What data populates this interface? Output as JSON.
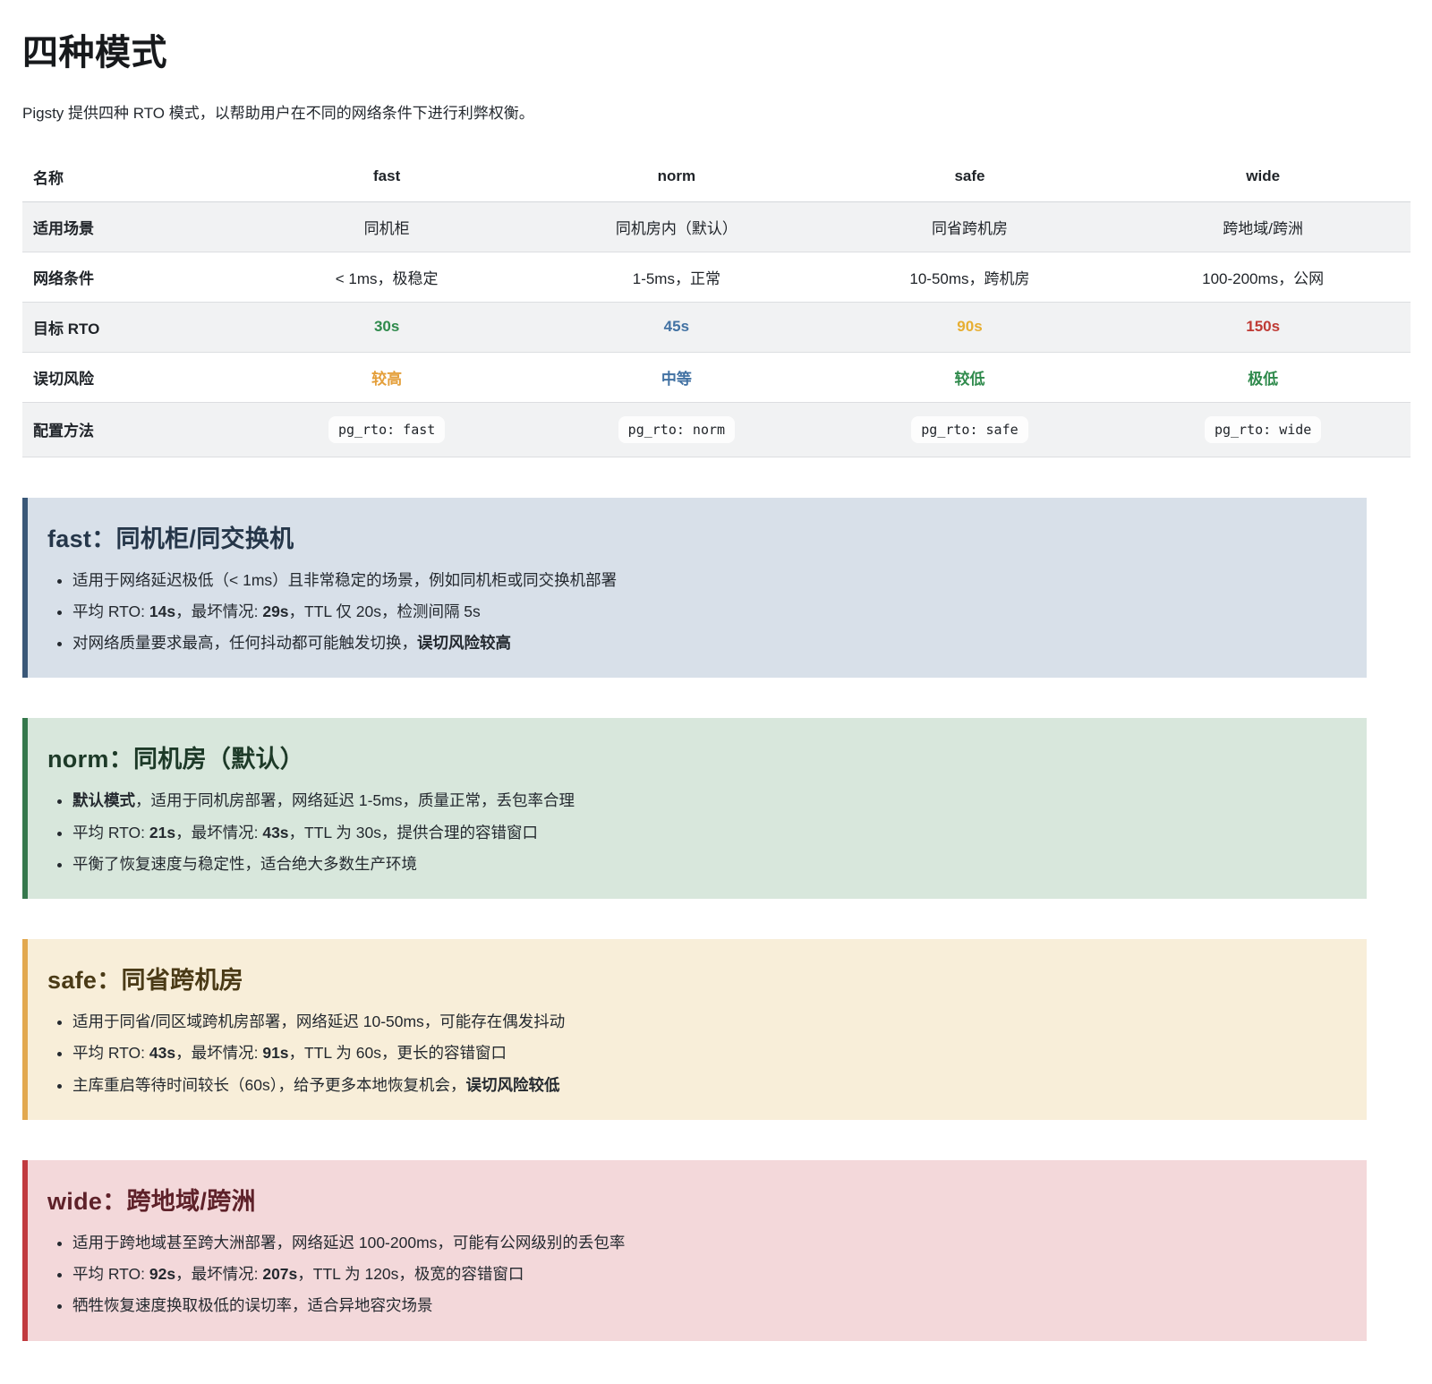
{
  "page": {
    "title": "四种模式",
    "intro": "Pigsty 提供四种 RTO 模式，以帮助用户在不同的网络条件下进行利弊权衡。"
  },
  "colors": {
    "green": "#2f8a4c",
    "blue": "#4272a3",
    "amber": "#e7ae31",
    "orange": "#e49f3b",
    "red": "#bf3a34"
  },
  "table": {
    "headers": [
      "名称",
      "fast",
      "norm",
      "safe",
      "wide"
    ],
    "rows": [
      {
        "label": "适用场景",
        "cells": [
          {
            "text": "同机柜"
          },
          {
            "text": "同机房内（默认）"
          },
          {
            "text": "同省跨机房"
          },
          {
            "text": "跨地域/跨洲"
          }
        ]
      },
      {
        "label": "网络条件",
        "cells": [
          {
            "text": "< 1ms，极稳定"
          },
          {
            "text": "1-5ms，正常"
          },
          {
            "text": "10-50ms，跨机房"
          },
          {
            "text": "100-200ms，公网"
          }
        ]
      },
      {
        "label": "目标 RTO",
        "cells": [
          {
            "text": "30s",
            "color": "#2f8a4c"
          },
          {
            "text": "45s",
            "color": "#4272a3"
          },
          {
            "text": "90s",
            "color": "#e7ae31"
          },
          {
            "text": "150s",
            "color": "#bf3a34"
          }
        ]
      },
      {
        "label": "误切风险",
        "cells": [
          {
            "text": "较高",
            "color": "#e49f3b"
          },
          {
            "text": "中等",
            "color": "#4272a3"
          },
          {
            "text": "较低",
            "color": "#2f8a4c"
          },
          {
            "text": "极低",
            "color": "#2f8a4c"
          }
        ]
      },
      {
        "label": "配置方法",
        "cells": [
          {
            "text": "pg_rto: fast",
            "code": true
          },
          {
            "text": "pg_rto: norm",
            "code": true
          },
          {
            "text": "pg_rto: safe",
            "code": true
          },
          {
            "text": "pg_rto: wide",
            "code": true
          }
        ]
      }
    ]
  },
  "callouts": [
    {
      "id": "fast",
      "title": "fast：同机柜/同交换机",
      "bg": "#d8e0e9",
      "border": "#3a5878",
      "title_color": "#253649",
      "bullets": [
        [
          {
            "t": "适用于网络延迟极低（< 1ms）且非常稳定的场景，例如同机柜或同交换机部署"
          }
        ],
        [
          {
            "t": "平均 RTO: "
          },
          {
            "t": "14s",
            "b": true
          },
          {
            "t": "，最坏情况: "
          },
          {
            "t": "29s",
            "b": true
          },
          {
            "t": "，TTL 仅 20s，检测间隔 5s"
          }
        ],
        [
          {
            "t": "对网络质量要求最高，任何抖动都可能触发切换，"
          },
          {
            "t": "误切风险较高",
            "b": true
          }
        ]
      ]
    },
    {
      "id": "norm",
      "title": "norm：同机房（默认）",
      "bg": "#d8e7dc",
      "border": "#35784c",
      "title_color": "#1d3a28",
      "bullets": [
        [
          {
            "t": "默认模式",
            "b": true
          },
          {
            "t": "，适用于同机房部署，网络延迟 1-5ms，质量正常，丢包率合理"
          }
        ],
        [
          {
            "t": "平均 RTO: "
          },
          {
            "t": "21s",
            "b": true
          },
          {
            "t": "，最坏情况: "
          },
          {
            "t": "43s",
            "b": true
          },
          {
            "t": "，TTL 为 30s，提供合理的容错窗口"
          }
        ],
        [
          {
            "t": "平衡了恢复速度与稳定性，适合绝大多数生产环境"
          }
        ]
      ]
    },
    {
      "id": "safe",
      "title": "safe：同省跨机房",
      "bg": "#f8eed9",
      "border": "#e2a84f",
      "title_color": "#4a3a16",
      "bullets": [
        [
          {
            "t": "适用于同省/同区域跨机房部署，网络延迟 10-50ms，可能存在偶发抖动"
          }
        ],
        [
          {
            "t": "平均 RTO: "
          },
          {
            "t": "43s",
            "b": true
          },
          {
            "t": "，最坏情况: "
          },
          {
            "t": "91s",
            "b": true
          },
          {
            "t": "，TTL 为 60s，更长的容错窗口"
          }
        ],
        [
          {
            "t": "主库重启等待时间较长（60s），给予更多本地恢复机会，"
          },
          {
            "t": "误切风险较低",
            "b": true
          }
        ]
      ]
    },
    {
      "id": "wide",
      "title": "wide：跨地域/跨洲",
      "bg": "#f3d8da",
      "border": "#c13a3f",
      "title_color": "#5e2129",
      "bullets": [
        [
          {
            "t": "适用于跨地域甚至跨大洲部署，网络延迟 100-200ms，可能有公网级别的丢包率"
          }
        ],
        [
          {
            "t": "平均 RTO: "
          },
          {
            "t": "92s",
            "b": true
          },
          {
            "t": "，最坏情况: "
          },
          {
            "t": "207s",
            "b": true
          },
          {
            "t": "，TTL 为 120s，极宽的容错窗口"
          }
        ],
        [
          {
            "t": "牺牲恢复速度换取极低的误切率，适合异地容灾场景"
          }
        ]
      ]
    }
  ]
}
